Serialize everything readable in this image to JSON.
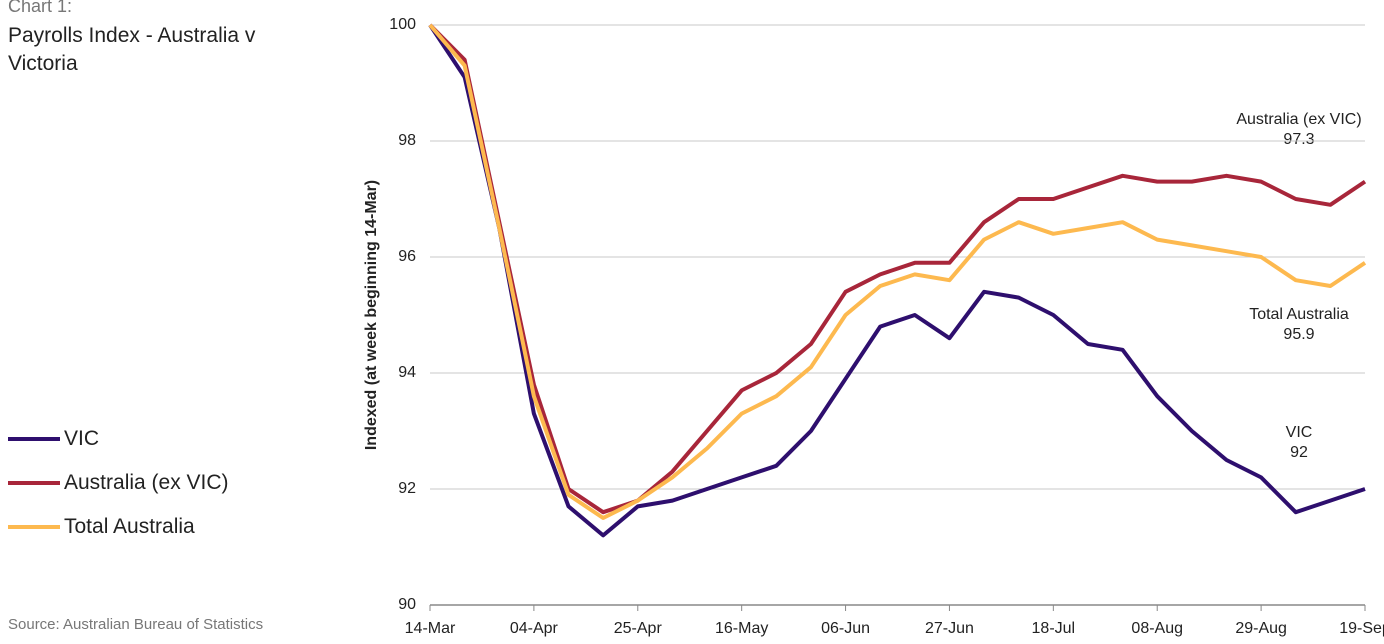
{
  "chart_data": {
    "type": "line",
    "title": "Chart 1:",
    "subtitle": "Payrolls Index - Australia v Victoria",
    "source": "Source: Australian Bureau of Statistics",
    "y_label": "Indexed (at week beginning 14-Mar)",
    "categories": [
      "14-Mar",
      null,
      null,
      "04-Apr",
      null,
      null,
      "25-Apr",
      null,
      null,
      "16-May",
      null,
      null,
      "06-Jun",
      null,
      null,
      "27-Jun",
      null,
      null,
      "18-Jul",
      null,
      null,
      "08-Aug",
      null,
      null,
      "29-Aug",
      null,
      null,
      "19-Sep"
    ],
    "series": [
      {
        "name": "VIC",
        "color": "#2e0f6e",
        "values": [
          100,
          99.1,
          96.5,
          93.3,
          91.7,
          91.2,
          91.7,
          91.8,
          92.0,
          92.2,
          92.4,
          93.0,
          93.9,
          94.8,
          95.0,
          94.6,
          95.4,
          95.3,
          95.0,
          94.5,
          94.4,
          93.6,
          93.0,
          92.5,
          92.2,
          91.6,
          91.8,
          92
        ]
      },
      {
        "name": "Australia (ex VIC)",
        "color": "#a8263a",
        "values": [
          100,
          99.4,
          96.6,
          93.8,
          92.0,
          91.6,
          91.8,
          92.3,
          93.0,
          93.7,
          94.0,
          94.5,
          95.4,
          95.7,
          95.9,
          95.9,
          96.6,
          97.0,
          97.0,
          97.2,
          97.4,
          97.3,
          97.3,
          97.4,
          97.3,
          97.0,
          96.9,
          97.3
        ]
      },
      {
        "name": "Total Australia",
        "color": "#fdb94f",
        "values": [
          100,
          99.3,
          96.5,
          93.6,
          91.9,
          91.5,
          91.8,
          92.2,
          92.7,
          93.3,
          93.6,
          94.1,
          95.0,
          95.5,
          95.7,
          95.6,
          96.3,
          96.6,
          96.4,
          96.5,
          96.6,
          96.3,
          96.2,
          96.1,
          96.0,
          95.6,
          95.5,
          95.9
        ]
      }
    ],
    "ylim": [
      90,
      100
    ],
    "yticks": [
      90,
      92,
      94,
      96,
      98,
      100
    ],
    "grid": true
  }
}
